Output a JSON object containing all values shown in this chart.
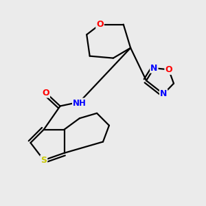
{
  "bg_color": "#ebebeb",
  "bond_color": "#000000",
  "atom_colors": {
    "S": "#c8c800",
    "O": "#ff0000",
    "N": "#0000ff",
    "C": "#000000",
    "H": "#000000"
  },
  "oxane_3d": true,
  "lw": 1.6
}
